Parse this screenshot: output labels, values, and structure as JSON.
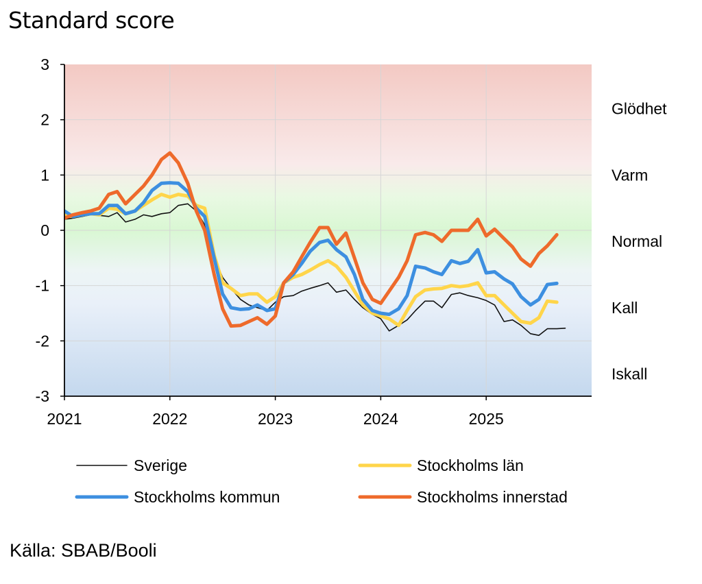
{
  "title": "Standard score",
  "source": "Källa: SBAB/Booli",
  "chart_data": {
    "type": "line",
    "title": "Standard score",
    "ylim": [
      -3,
      3
    ],
    "xlim": [
      2021,
      2026
    ],
    "x_ticks": [
      "2021",
      "2022",
      "2023",
      "2024",
      "2025"
    ],
    "y_ticks": [
      "3",
      "2",
      "1",
      "0",
      "-1",
      "-2",
      "-3"
    ],
    "grid": true,
    "legend_position": "bottom",
    "zones": [
      {
        "label": "Glödhet",
        "y": 2.2
      },
      {
        "label": "Varm",
        "y": 1.0
      },
      {
        "label": "Normal",
        "y": -0.2
      },
      {
        "label": "Kall",
        "y": -1.4
      },
      {
        "label": "Iskall",
        "y": -2.6
      }
    ],
    "series": [
      {
        "name": "Sverige",
        "color": "#111111",
        "width": 1.6,
        "points": [
          [
            2021.0,
            0.2
          ],
          [
            2021.08,
            0.22
          ],
          [
            2021.25,
            0.28
          ],
          [
            2021.33,
            0.27
          ],
          [
            2021.42,
            0.25
          ],
          [
            2021.5,
            0.32
          ],
          [
            2021.58,
            0.15
          ],
          [
            2021.67,
            0.2
          ],
          [
            2021.75,
            0.28
          ],
          [
            2021.83,
            0.25
          ],
          [
            2021.92,
            0.3
          ],
          [
            2022.0,
            0.32
          ],
          [
            2022.08,
            0.45
          ],
          [
            2022.17,
            0.48
          ],
          [
            2022.25,
            0.35
          ],
          [
            2022.33,
            0.1
          ],
          [
            2022.42,
            -0.5
          ],
          [
            2022.5,
            -0.85
          ],
          [
            2022.58,
            -1.05
          ],
          [
            2022.67,
            -1.25
          ],
          [
            2022.75,
            -1.35
          ],
          [
            2022.83,
            -1.4
          ],
          [
            2022.92,
            -1.45
          ],
          [
            2023.0,
            -1.3
          ],
          [
            2023.08,
            -1.2
          ],
          [
            2023.17,
            -1.18
          ],
          [
            2023.25,
            -1.1
          ],
          [
            2023.33,
            -1.05
          ],
          [
            2023.42,
            -1.0
          ],
          [
            2023.5,
            -0.95
          ],
          [
            2023.58,
            -1.12
          ],
          [
            2023.67,
            -1.08
          ],
          [
            2023.75,
            -1.25
          ],
          [
            2023.83,
            -1.4
          ],
          [
            2023.92,
            -1.52
          ],
          [
            2024.0,
            -1.6
          ],
          [
            2024.08,
            -1.82
          ],
          [
            2024.17,
            -1.72
          ],
          [
            2024.25,
            -1.62
          ],
          [
            2024.33,
            -1.45
          ],
          [
            2024.42,
            -1.28
          ],
          [
            2024.5,
            -1.28
          ],
          [
            2024.58,
            -1.4
          ],
          [
            2024.67,
            -1.16
          ],
          [
            2024.75,
            -1.13
          ],
          [
            2024.83,
            -1.18
          ],
          [
            2024.92,
            -1.22
          ],
          [
            2025.0,
            -1.27
          ],
          [
            2025.08,
            -1.35
          ],
          [
            2025.17,
            -1.65
          ],
          [
            2025.25,
            -1.62
          ],
          [
            2025.33,
            -1.72
          ],
          [
            2025.42,
            -1.87
          ],
          [
            2025.5,
            -1.9
          ],
          [
            2025.58,
            -1.78
          ],
          [
            2025.67,
            -1.78
          ],
          [
            2025.75,
            -1.77
          ]
        ]
      },
      {
        "name": "Stockholms län",
        "color": "#FFD54A",
        "width": 5,
        "points": [
          [
            2021.0,
            0.28
          ],
          [
            2021.08,
            0.25
          ],
          [
            2021.17,
            0.28
          ],
          [
            2021.25,
            0.3
          ],
          [
            2021.33,
            0.28
          ],
          [
            2021.42,
            0.4
          ],
          [
            2021.5,
            0.38
          ],
          [
            2021.58,
            0.3
          ],
          [
            2021.67,
            0.35
          ],
          [
            2021.75,
            0.45
          ],
          [
            2021.83,
            0.55
          ],
          [
            2021.92,
            0.65
          ],
          [
            2022.0,
            0.6
          ],
          [
            2022.08,
            0.65
          ],
          [
            2022.17,
            0.62
          ],
          [
            2022.25,
            0.45
          ],
          [
            2022.33,
            0.4
          ],
          [
            2022.42,
            -0.45
          ],
          [
            2022.5,
            -0.95
          ],
          [
            2022.58,
            -1.05
          ],
          [
            2022.67,
            -1.18
          ],
          [
            2022.75,
            -1.15
          ],
          [
            2022.83,
            -1.15
          ],
          [
            2022.92,
            -1.3
          ],
          [
            2023.0,
            -1.2
          ],
          [
            2023.08,
            -0.95
          ],
          [
            2023.17,
            -0.85
          ],
          [
            2023.25,
            -0.8
          ],
          [
            2023.33,
            -0.72
          ],
          [
            2023.42,
            -0.62
          ],
          [
            2023.5,
            -0.55
          ],
          [
            2023.58,
            -0.65
          ],
          [
            2023.67,
            -0.85
          ],
          [
            2023.75,
            -1.1
          ],
          [
            2023.83,
            -1.35
          ],
          [
            2023.92,
            -1.5
          ],
          [
            2024.0,
            -1.55
          ],
          [
            2024.08,
            -1.6
          ],
          [
            2024.17,
            -1.72
          ],
          [
            2024.25,
            -1.45
          ],
          [
            2024.33,
            -1.2
          ],
          [
            2024.42,
            -1.08
          ],
          [
            2024.5,
            -1.06
          ],
          [
            2024.58,
            -1.05
          ],
          [
            2024.67,
            -1.0
          ],
          [
            2024.75,
            -1.02
          ],
          [
            2024.83,
            -1.0
          ],
          [
            2024.92,
            -0.95
          ],
          [
            2025.0,
            -1.18
          ],
          [
            2025.08,
            -1.18
          ],
          [
            2025.17,
            -1.35
          ],
          [
            2025.25,
            -1.5
          ],
          [
            2025.33,
            -1.65
          ],
          [
            2025.42,
            -1.68
          ],
          [
            2025.5,
            -1.58
          ],
          [
            2025.58,
            -1.28
          ],
          [
            2025.67,
            -1.3
          ]
        ]
      },
      {
        "name": "Stockholms kommun",
        "color": "#3D8FE0",
        "width": 5,
        "points": [
          [
            2021.0,
            0.35
          ],
          [
            2021.08,
            0.25
          ],
          [
            2021.17,
            0.28
          ],
          [
            2021.25,
            0.3
          ],
          [
            2021.33,
            0.3
          ],
          [
            2021.42,
            0.45
          ],
          [
            2021.5,
            0.45
          ],
          [
            2021.58,
            0.3
          ],
          [
            2021.67,
            0.35
          ],
          [
            2021.75,
            0.5
          ],
          [
            2021.83,
            0.72
          ],
          [
            2021.92,
            0.85
          ],
          [
            2022.0,
            0.86
          ],
          [
            2022.08,
            0.85
          ],
          [
            2022.17,
            0.7
          ],
          [
            2022.25,
            0.4
          ],
          [
            2022.33,
            0.25
          ],
          [
            2022.42,
            -0.5
          ],
          [
            2022.5,
            -1.15
          ],
          [
            2022.58,
            -1.4
          ],
          [
            2022.67,
            -1.43
          ],
          [
            2022.75,
            -1.42
          ],
          [
            2022.83,
            -1.35
          ],
          [
            2022.92,
            -1.45
          ],
          [
            2023.0,
            -1.42
          ],
          [
            2023.08,
            -0.95
          ],
          [
            2023.17,
            -0.8
          ],
          [
            2023.25,
            -0.6
          ],
          [
            2023.33,
            -0.38
          ],
          [
            2023.42,
            -0.22
          ],
          [
            2023.5,
            -0.18
          ],
          [
            2023.58,
            -0.35
          ],
          [
            2023.67,
            -0.48
          ],
          [
            2023.75,
            -0.8
          ],
          [
            2023.83,
            -1.25
          ],
          [
            2023.92,
            -1.45
          ],
          [
            2024.0,
            -1.5
          ],
          [
            2024.08,
            -1.52
          ],
          [
            2024.17,
            -1.42
          ],
          [
            2024.25,
            -1.18
          ],
          [
            2024.33,
            -0.65
          ],
          [
            2024.42,
            -0.68
          ],
          [
            2024.5,
            -0.75
          ],
          [
            2024.58,
            -0.8
          ],
          [
            2024.67,
            -0.55
          ],
          [
            2024.75,
            -0.6
          ],
          [
            2024.83,
            -0.56
          ],
          [
            2024.92,
            -0.35
          ],
          [
            2025.0,
            -0.77
          ],
          [
            2025.08,
            -0.75
          ],
          [
            2025.17,
            -0.88
          ],
          [
            2025.25,
            -0.97
          ],
          [
            2025.33,
            -1.2
          ],
          [
            2025.42,
            -1.35
          ],
          [
            2025.5,
            -1.25
          ],
          [
            2025.58,
            -0.98
          ],
          [
            2025.67,
            -0.96
          ]
        ]
      },
      {
        "name": "Stockholms innerstad",
        "color": "#EE6A2B",
        "width": 5,
        "points": [
          [
            2021.0,
            0.22
          ],
          [
            2021.08,
            0.28
          ],
          [
            2021.17,
            0.32
          ],
          [
            2021.25,
            0.35
          ],
          [
            2021.33,
            0.4
          ],
          [
            2021.42,
            0.65
          ],
          [
            2021.5,
            0.7
          ],
          [
            2021.58,
            0.48
          ],
          [
            2021.67,
            0.65
          ],
          [
            2021.75,
            0.8
          ],
          [
            2021.83,
            1.0
          ],
          [
            2021.92,
            1.28
          ],
          [
            2022.0,
            1.4
          ],
          [
            2022.08,
            1.22
          ],
          [
            2022.17,
            0.85
          ],
          [
            2022.25,
            0.35
          ],
          [
            2022.33,
            0.0
          ],
          [
            2022.42,
            -0.8
          ],
          [
            2022.5,
            -1.42
          ],
          [
            2022.58,
            -1.73
          ],
          [
            2022.67,
            -1.72
          ],
          [
            2022.75,
            -1.65
          ],
          [
            2022.83,
            -1.58
          ],
          [
            2022.92,
            -1.7
          ],
          [
            2023.0,
            -1.55
          ],
          [
            2023.08,
            -0.95
          ],
          [
            2023.17,
            -0.75
          ],
          [
            2023.25,
            -0.48
          ],
          [
            2023.33,
            -0.22
          ],
          [
            2023.42,
            0.05
          ],
          [
            2023.5,
            0.05
          ],
          [
            2023.58,
            -0.25
          ],
          [
            2023.67,
            -0.05
          ],
          [
            2023.75,
            -0.5
          ],
          [
            2023.83,
            -0.95
          ],
          [
            2023.92,
            -1.25
          ],
          [
            2024.0,
            -1.32
          ],
          [
            2024.08,
            -1.1
          ],
          [
            2024.17,
            -0.85
          ],
          [
            2024.25,
            -0.55
          ],
          [
            2024.33,
            -0.08
          ],
          [
            2024.42,
            -0.04
          ],
          [
            2024.5,
            -0.08
          ],
          [
            2024.58,
            -0.2
          ],
          [
            2024.67,
            0.0
          ],
          [
            2024.75,
            0.0
          ],
          [
            2024.83,
            0.0
          ],
          [
            2024.92,
            0.2
          ],
          [
            2025.0,
            -0.1
          ],
          [
            2025.08,
            0.02
          ],
          [
            2025.17,
            -0.15
          ],
          [
            2025.25,
            -0.3
          ],
          [
            2025.33,
            -0.52
          ],
          [
            2025.42,
            -0.65
          ],
          [
            2025.5,
            -0.42
          ],
          [
            2025.58,
            -0.28
          ],
          [
            2025.67,
            -0.08
          ]
        ]
      }
    ]
  }
}
